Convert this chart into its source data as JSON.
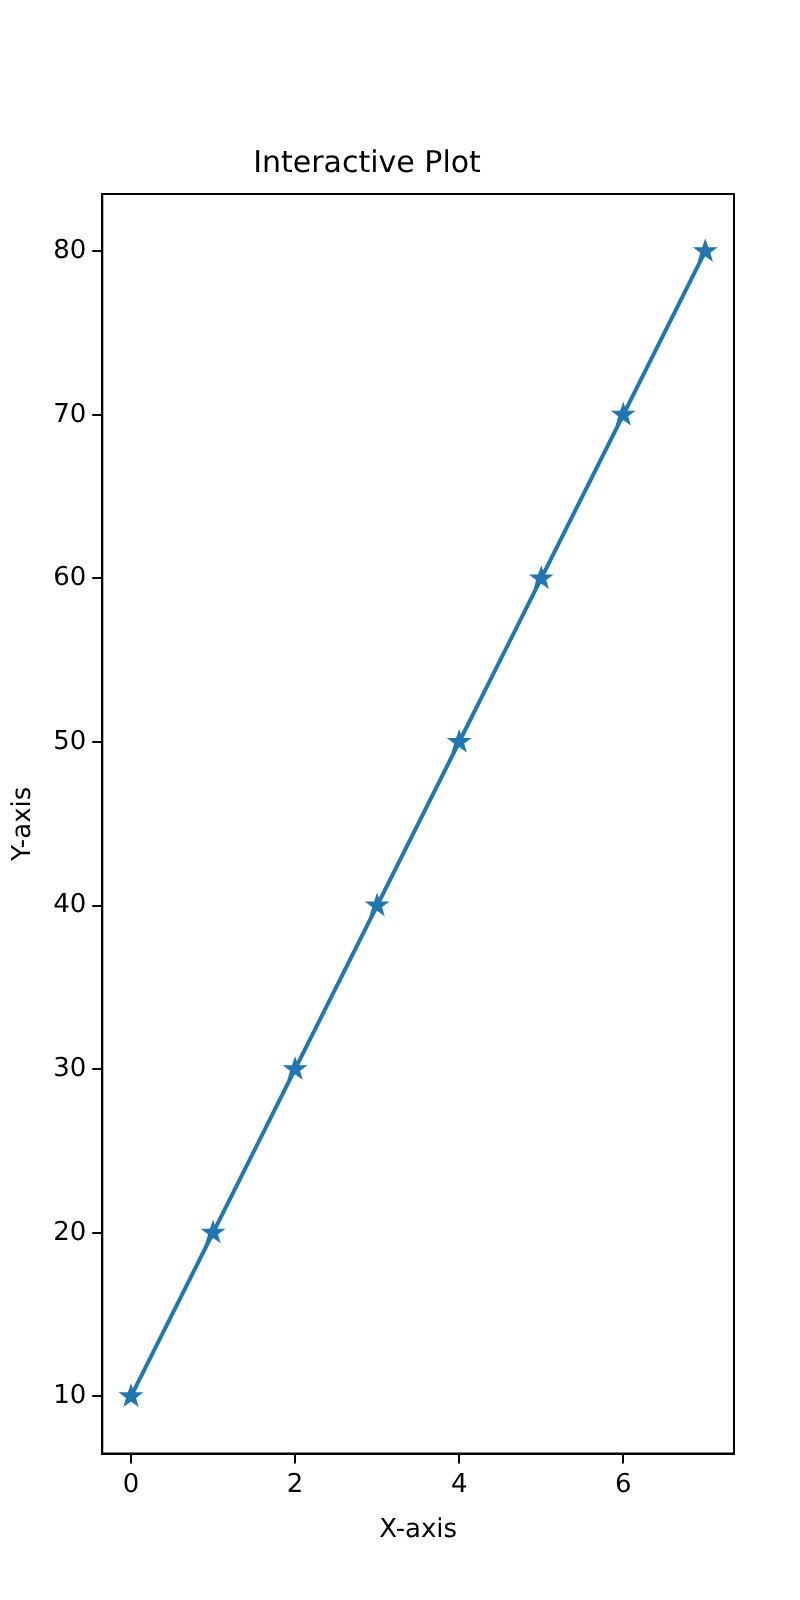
{
  "chart_data": {
    "type": "line",
    "title": "Interactive Plot",
    "xlabel": "X-axis",
    "ylabel": "Y-axis",
    "x": [
      0,
      1,
      2,
      3,
      4,
      5,
      6,
      7
    ],
    "series": [
      {
        "color": "#1f77b4",
        "values": [
          10,
          20,
          30,
          40,
          50,
          60,
          70,
          80
        ]
      }
    ],
    "xlim": [
      -0.35,
      7.35
    ],
    "xticks": [
      0,
      2,
      4,
      6
    ],
    "ylim": [
      6.5,
      83.5
    ],
    "yticks": [
      10,
      20,
      30,
      40,
      50,
      60,
      70,
      80
    ],
    "grid": false,
    "legend": false,
    "marker": "star",
    "line_style": "solid"
  }
}
